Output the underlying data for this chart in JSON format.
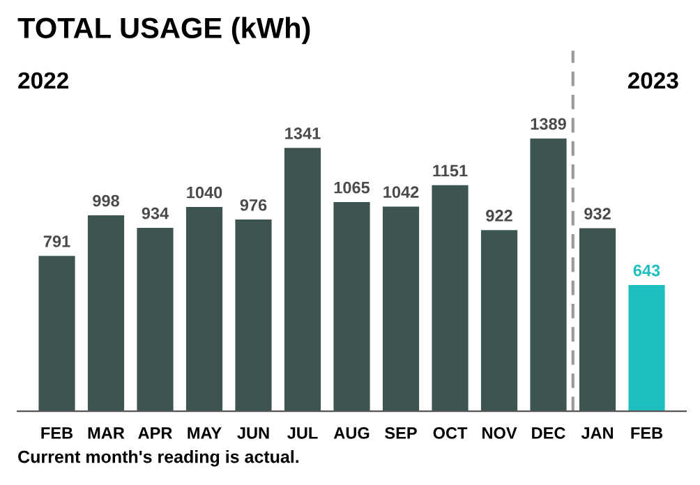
{
  "chart_data": {
    "type": "bar",
    "title": "TOTAL USAGE (kWh)",
    "categories": [
      "FEB",
      "MAR",
      "APR",
      "MAY",
      "JUN",
      "JUL",
      "AUG",
      "SEP",
      "OCT",
      "NOV",
      "DEC",
      "JAN",
      "FEB"
    ],
    "values": [
      791,
      998,
      934,
      1040,
      976,
      1341,
      1065,
      1042,
      1151,
      922,
      1389,
      932,
      643
    ],
    "colors": [
      "#3d5450",
      "#3d5450",
      "#3d5450",
      "#3d5450",
      "#3d5450",
      "#3d5450",
      "#3d5450",
      "#3d5450",
      "#3d5450",
      "#3d5450",
      "#3d5450",
      "#3d5450",
      "#1fbfbf"
    ],
    "data_labels": true,
    "tick_labels": "x",
    "grid": false,
    "annotations": [
      "2022",
      "2023",
      "Current month's reading is actual."
    ]
  }
}
